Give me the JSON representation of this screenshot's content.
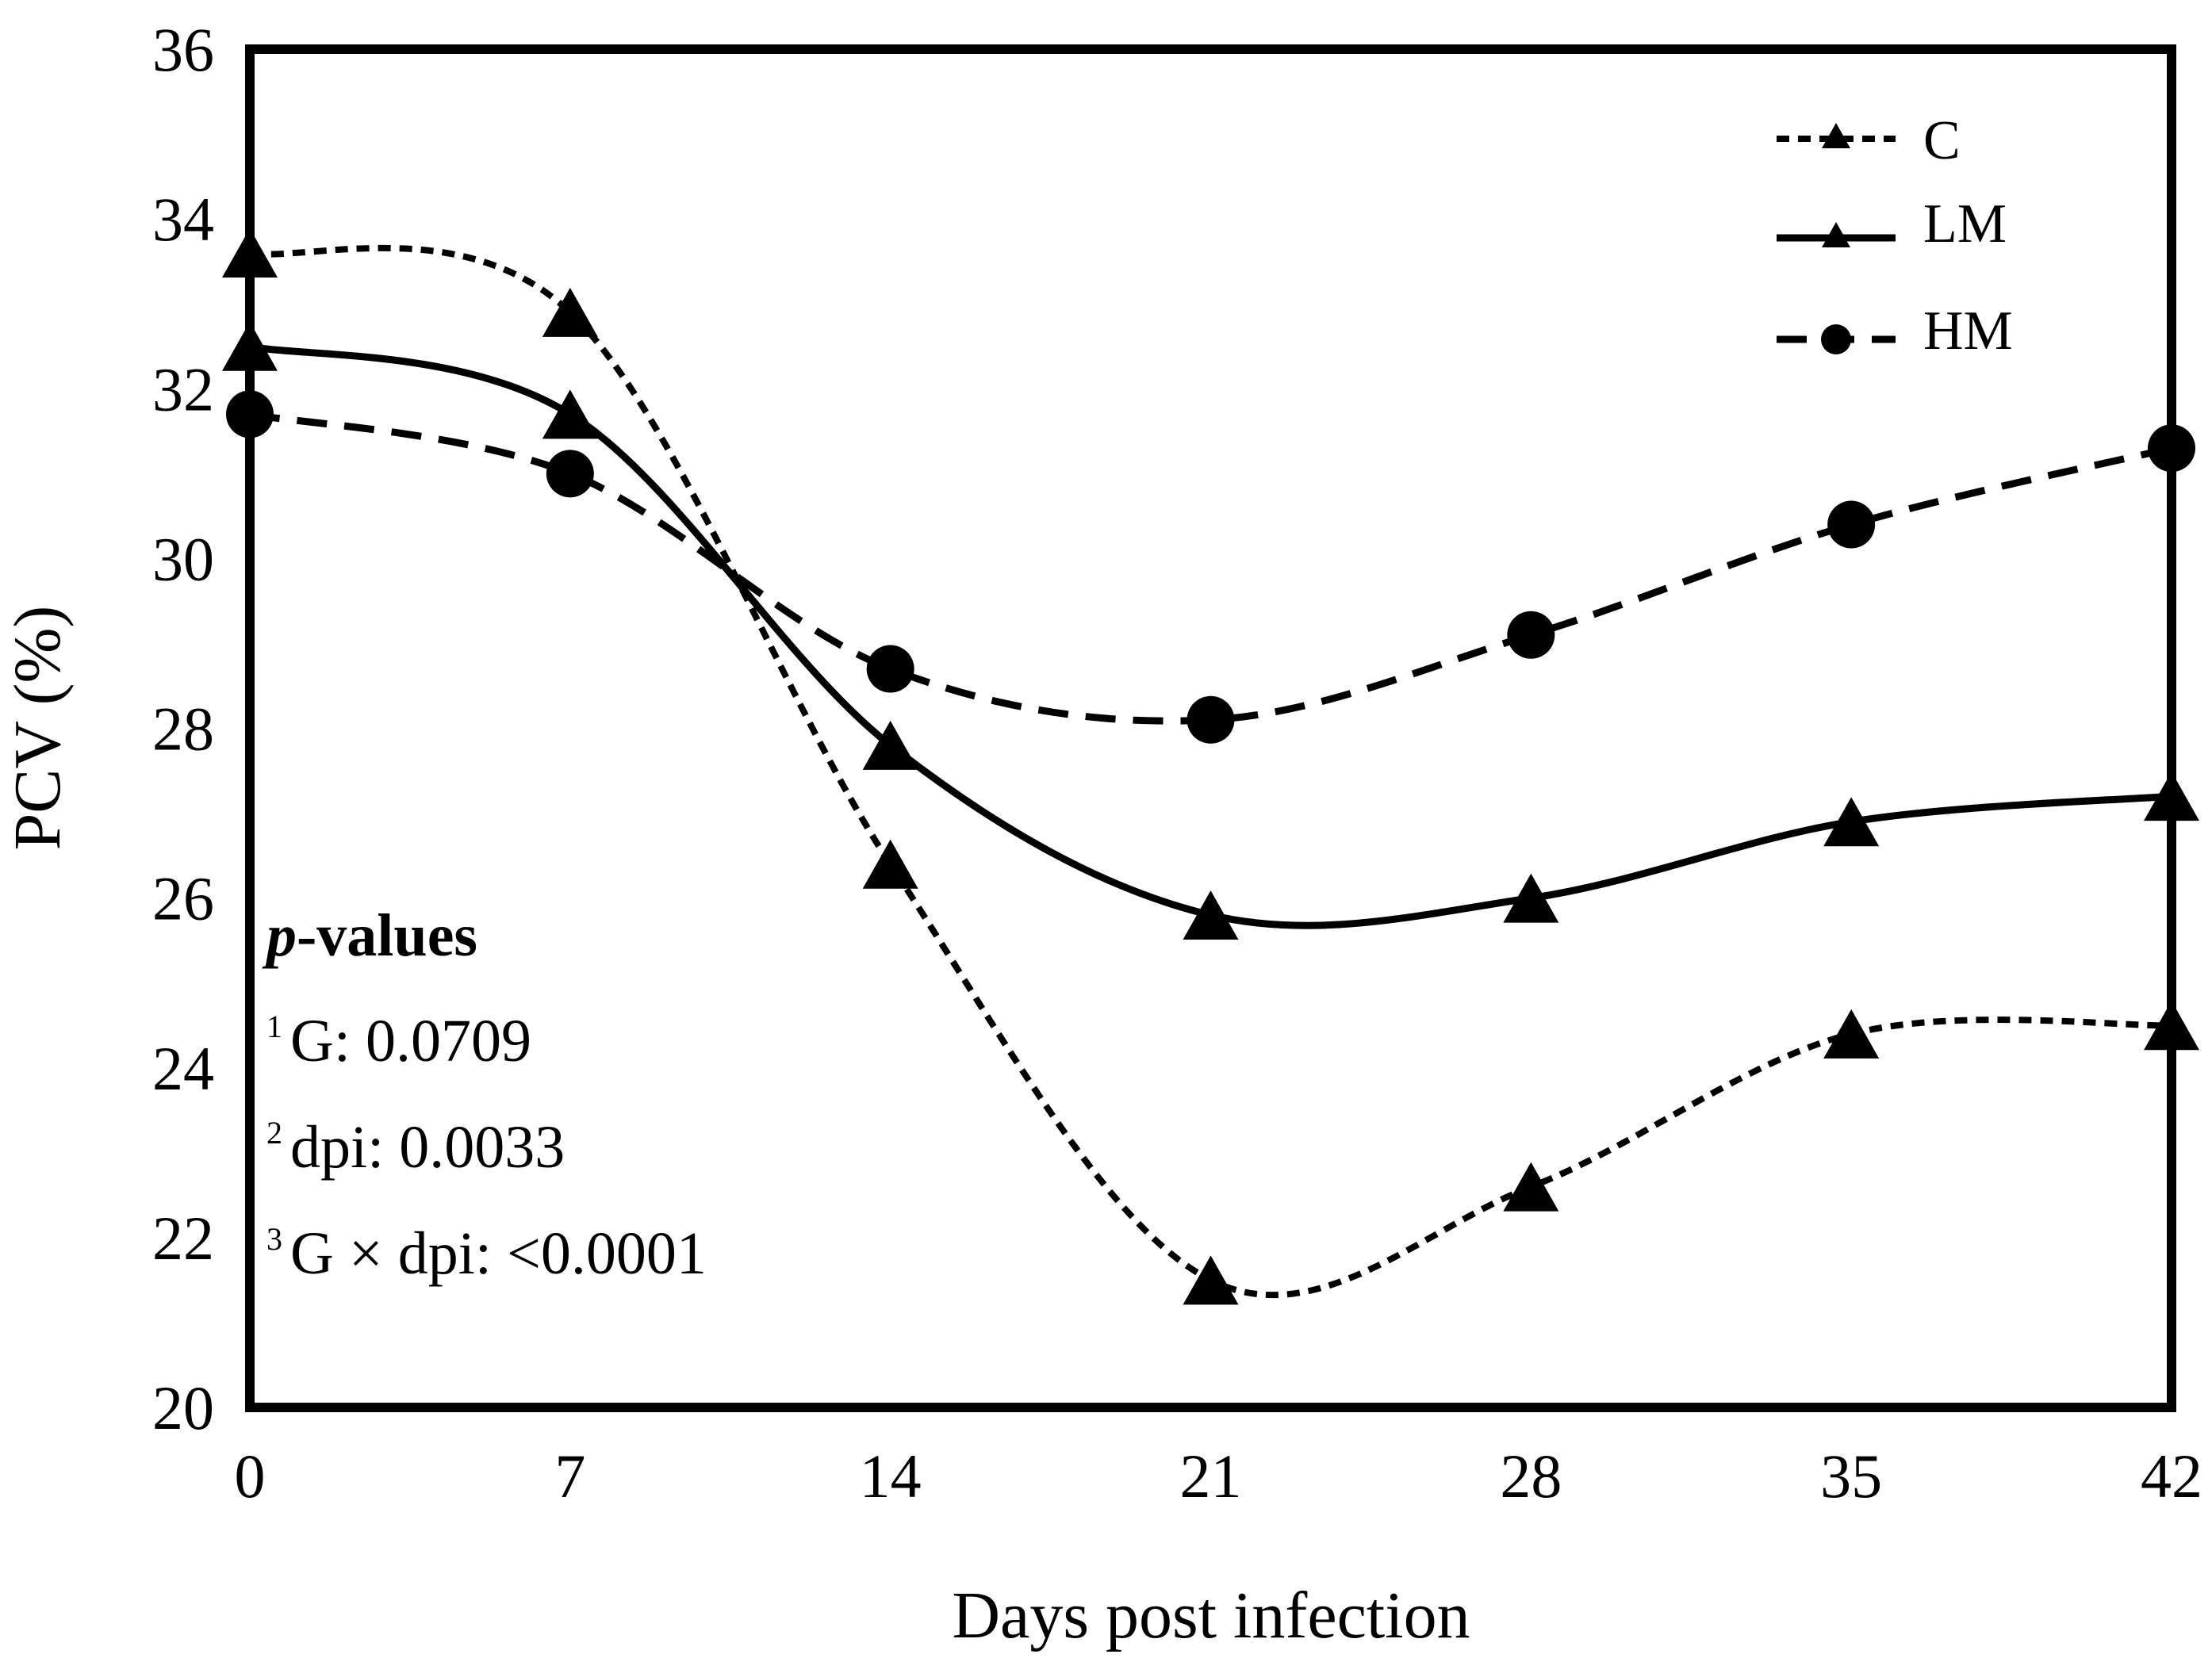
{
  "chart_data": {
    "type": "line",
    "title": "",
    "xlabel": "Days post infection",
    "ylabel": "PCV (%)",
    "x": [
      0,
      7,
      14,
      21,
      28,
      35,
      42
    ],
    "xlim": [
      0,
      42
    ],
    "ylim": [
      20,
      36
    ],
    "xticks": [
      "0",
      "7",
      "14",
      "21",
      "28",
      "35",
      "42"
    ],
    "yticks": [
      "20",
      "22",
      "24",
      "26",
      "28",
      "30",
      "32",
      "34",
      "36"
    ],
    "grid": false,
    "legend_position": "top-right",
    "series": [
      {
        "name": "C",
        "marker": "triangle",
        "line_style": "short-dash",
        "values": [
          33.6,
          32.9,
          26.4,
          21.5,
          22.6,
          24.4,
          24.5
        ]
      },
      {
        "name": "LM",
        "marker": "triangle",
        "line_style": "solid",
        "values": [
          32.5,
          31.7,
          27.8,
          25.8,
          26.0,
          26.9,
          27.2
        ]
      },
      {
        "name": "HM",
        "marker": "circle",
        "line_style": "long-dash",
        "values": [
          31.7,
          31.0,
          28.7,
          28.1,
          29.1,
          30.4,
          31.3
        ]
      }
    ],
    "annotations": {
      "heading_italic": "p",
      "heading_rest": "-values",
      "lines": [
        {
          "sup": "1",
          "text": "G: 0.0709"
        },
        {
          "sup": "2",
          "text": "dpi: 0.0033"
        },
        {
          "sup": "3",
          "text": "G × dpi: <0.0001"
        }
      ]
    },
    "colors": {
      "line": "#000000",
      "background": "#ffffff"
    }
  }
}
